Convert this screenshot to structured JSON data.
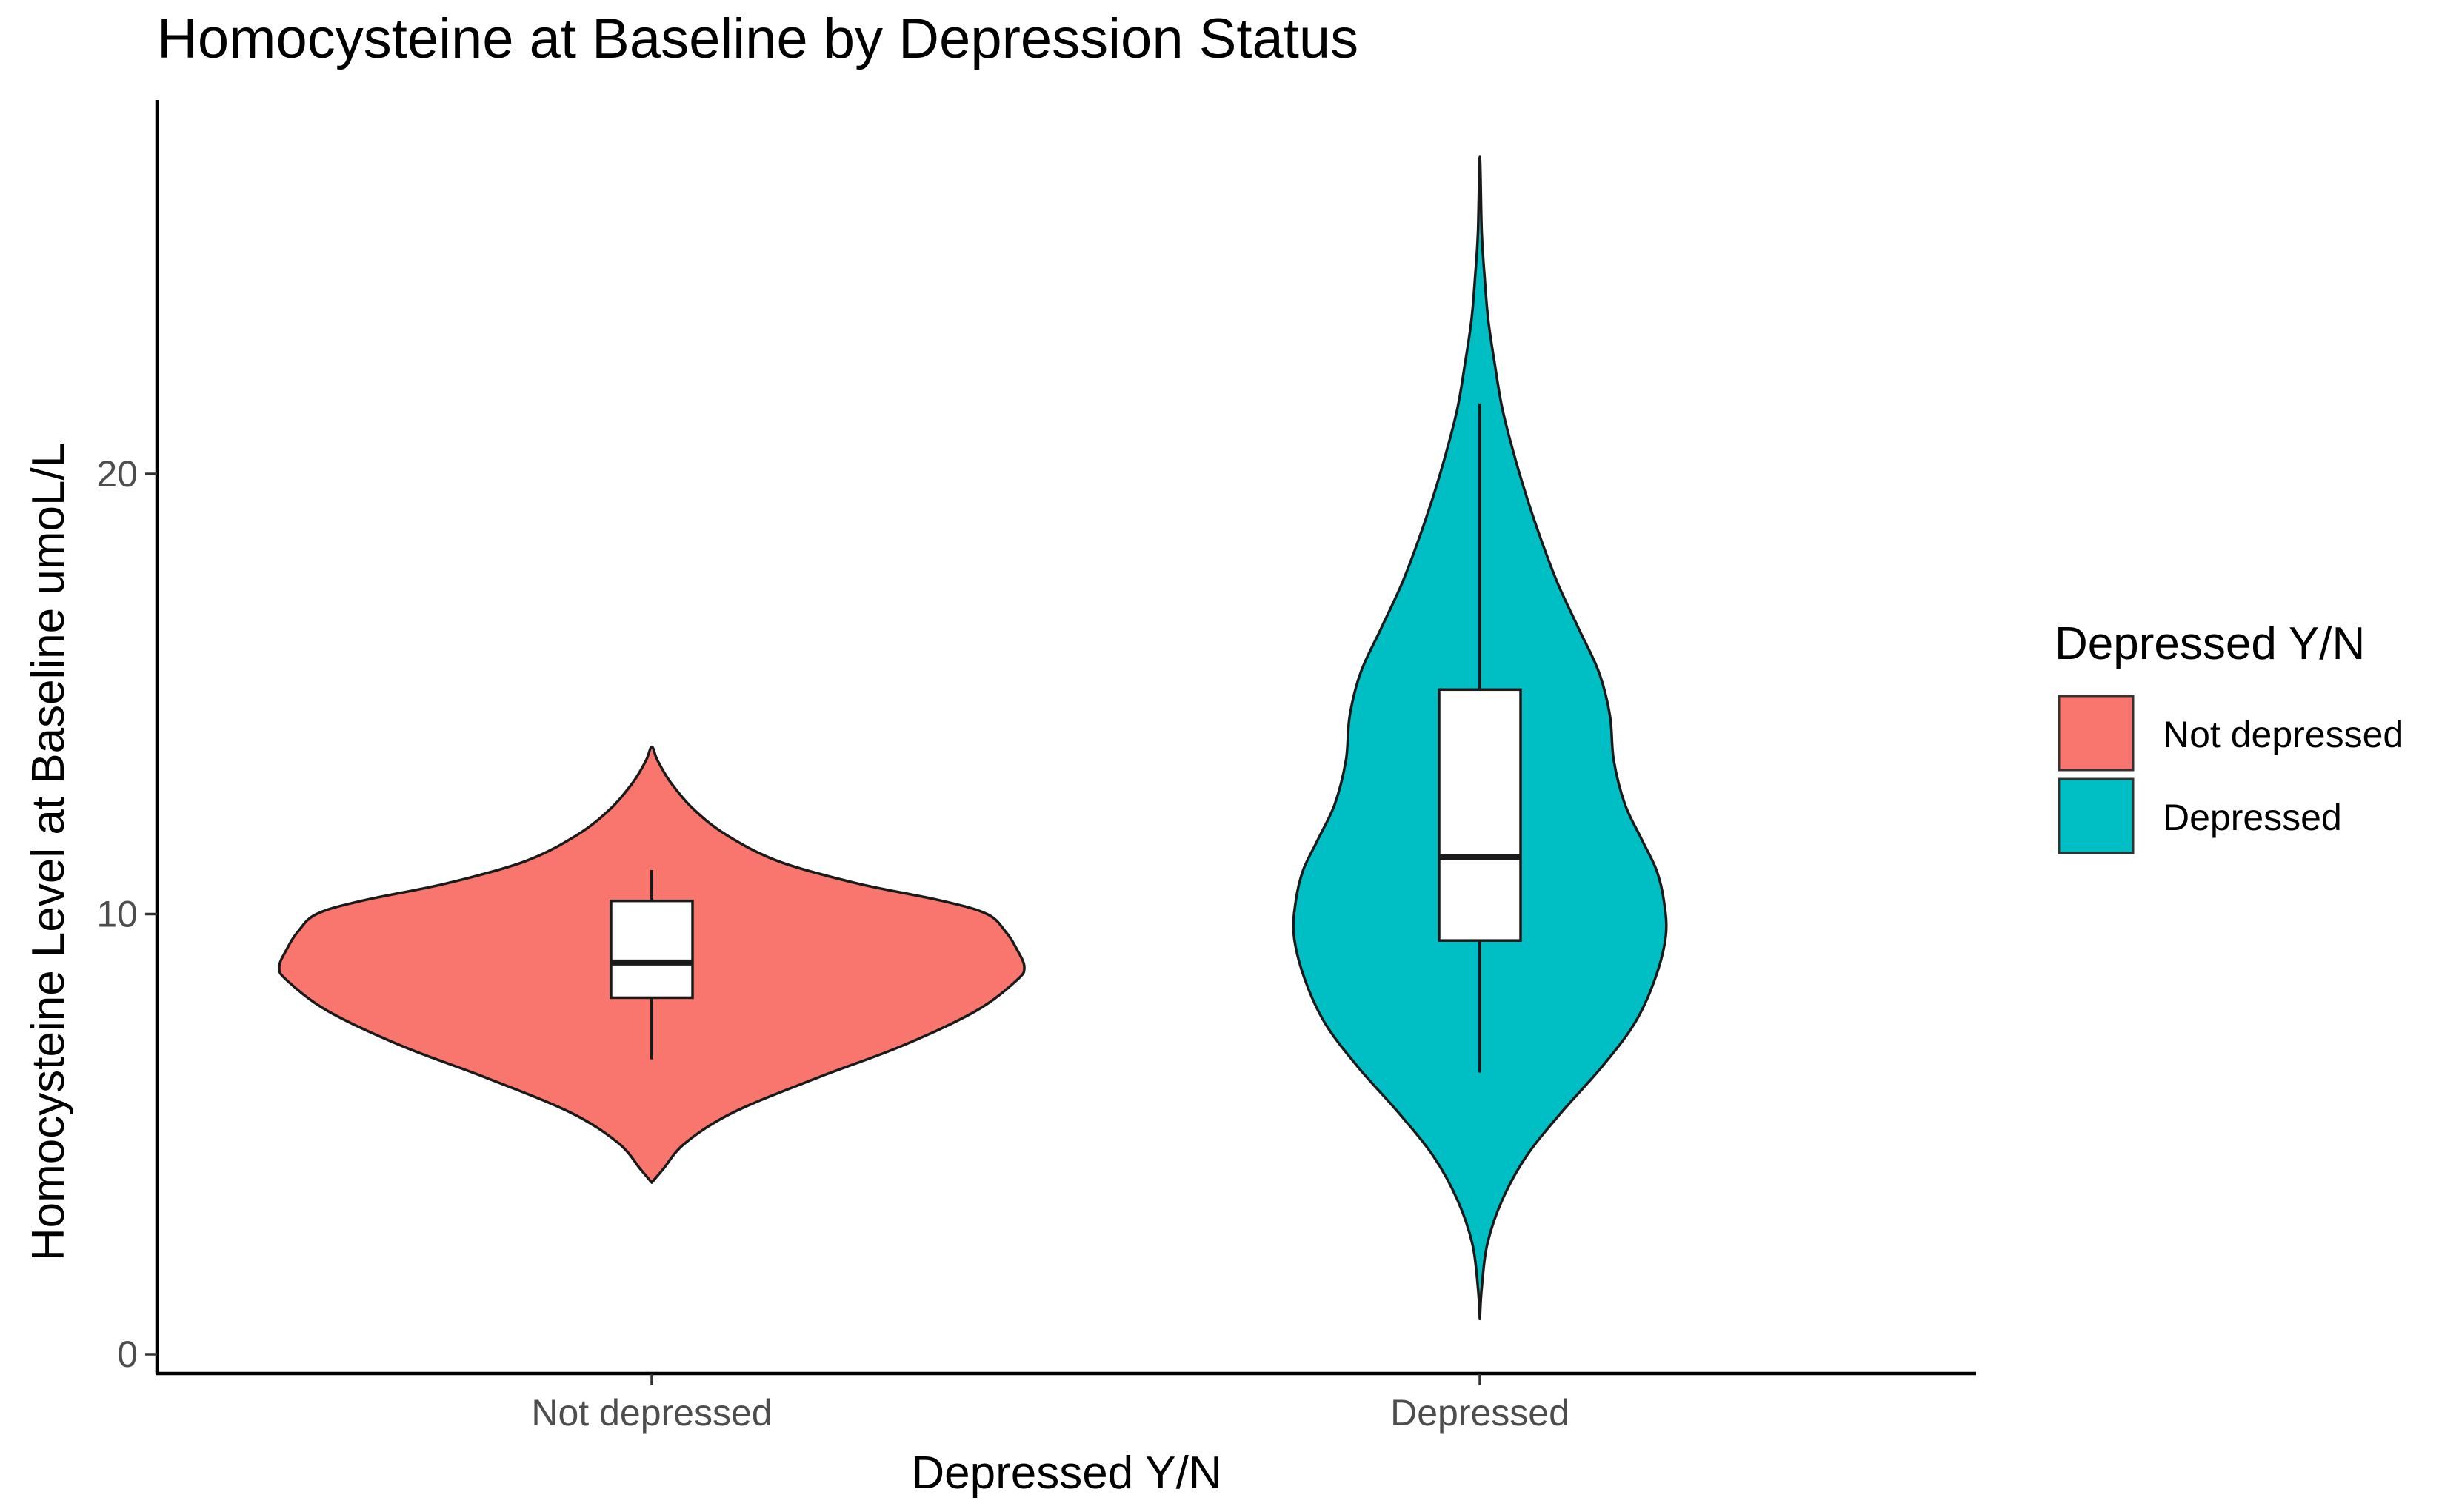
{
  "chart_data": {
    "type": "violin",
    "title": "Homocysteine at Baseline by Depression Status",
    "xlabel": "Depressed Y/N",
    "ylabel": "Homocysteine Level at Baseline umoL/L",
    "ylim": [
      0,
      28
    ],
    "yticks": [
      0,
      10,
      20
    ],
    "grid": false,
    "categories": [
      "Not depressed",
      "Depressed"
    ],
    "legend": {
      "title": "Depressed Y/N",
      "position": "right",
      "entries": [
        {
          "label": "Not depressed",
          "color": "#F8766D"
        },
        {
          "label": "Depressed",
          "color": "#00BFC4"
        }
      ]
    },
    "series": [
      {
        "name": "Not depressed",
        "color": "#F8766D",
        "density_profile": [
          {
            "y": 3.9,
            "w": 0.0
          },
          {
            "y": 4.2,
            "w": 0.03
          },
          {
            "y": 4.8,
            "w": 0.09
          },
          {
            "y": 5.5,
            "w": 0.22
          },
          {
            "y": 6.3,
            "w": 0.45
          },
          {
            "y": 7.0,
            "w": 0.67
          },
          {
            "y": 7.8,
            "w": 0.87
          },
          {
            "y": 8.5,
            "w": 0.98
          },
          {
            "y": 8.8,
            "w": 1.0
          },
          {
            "y": 9.2,
            "w": 0.98
          },
          {
            "y": 9.6,
            "w": 0.95
          },
          {
            "y": 10.0,
            "w": 0.9
          },
          {
            "y": 10.3,
            "w": 0.78
          },
          {
            "y": 10.7,
            "w": 0.55
          },
          {
            "y": 11.2,
            "w": 0.34
          },
          {
            "y": 11.8,
            "w": 0.2
          },
          {
            "y": 12.4,
            "w": 0.11
          },
          {
            "y": 13.0,
            "w": 0.05
          },
          {
            "y": 13.5,
            "w": 0.015
          },
          {
            "y": 13.8,
            "w": 0.0
          }
        ],
        "box": {
          "whisker_low": 6.7,
          "q1": 8.1,
          "median": 8.9,
          "q3": 10.3,
          "whisker_high": 11.0
        }
      },
      {
        "name": "Depressed",
        "color": "#00BFC4",
        "density_profile": [
          {
            "y": 0.8,
            "w": 0.0
          },
          {
            "y": 1.5,
            "w": 0.01
          },
          {
            "y": 2.5,
            "w": 0.04
          },
          {
            "y": 3.5,
            "w": 0.12
          },
          {
            "y": 4.5,
            "w": 0.25
          },
          {
            "y": 5.5,
            "w": 0.44
          },
          {
            "y": 6.5,
            "w": 0.65
          },
          {
            "y": 7.5,
            "w": 0.83
          },
          {
            "y": 8.5,
            "w": 0.94
          },
          {
            "y": 9.5,
            "w": 1.0
          },
          {
            "y": 10.3,
            "w": 0.99
          },
          {
            "y": 11.0,
            "w": 0.95
          },
          {
            "y": 11.7,
            "w": 0.87
          },
          {
            "y": 12.5,
            "w": 0.78
          },
          {
            "y": 13.5,
            "w": 0.72
          },
          {
            "y": 14.5,
            "w": 0.7
          },
          {
            "y": 15.5,
            "w": 0.64
          },
          {
            "y": 16.5,
            "w": 0.53
          },
          {
            "y": 17.5,
            "w": 0.42
          },
          {
            "y": 18.5,
            "w": 0.33
          },
          {
            "y": 19.5,
            "w": 0.25
          },
          {
            "y": 20.5,
            "w": 0.18
          },
          {
            "y": 21.5,
            "w": 0.12
          },
          {
            "y": 22.5,
            "w": 0.08
          },
          {
            "y": 23.5,
            "w": 0.045
          },
          {
            "y": 24.5,
            "w": 0.025
          },
          {
            "y": 25.5,
            "w": 0.01
          },
          {
            "y": 27.2,
            "w": 0.0
          }
        ],
        "box": {
          "whisker_low": 6.4,
          "q1": 9.4,
          "median": 11.3,
          "q3": 15.1,
          "whisker_high": 21.6
        }
      }
    ]
  }
}
